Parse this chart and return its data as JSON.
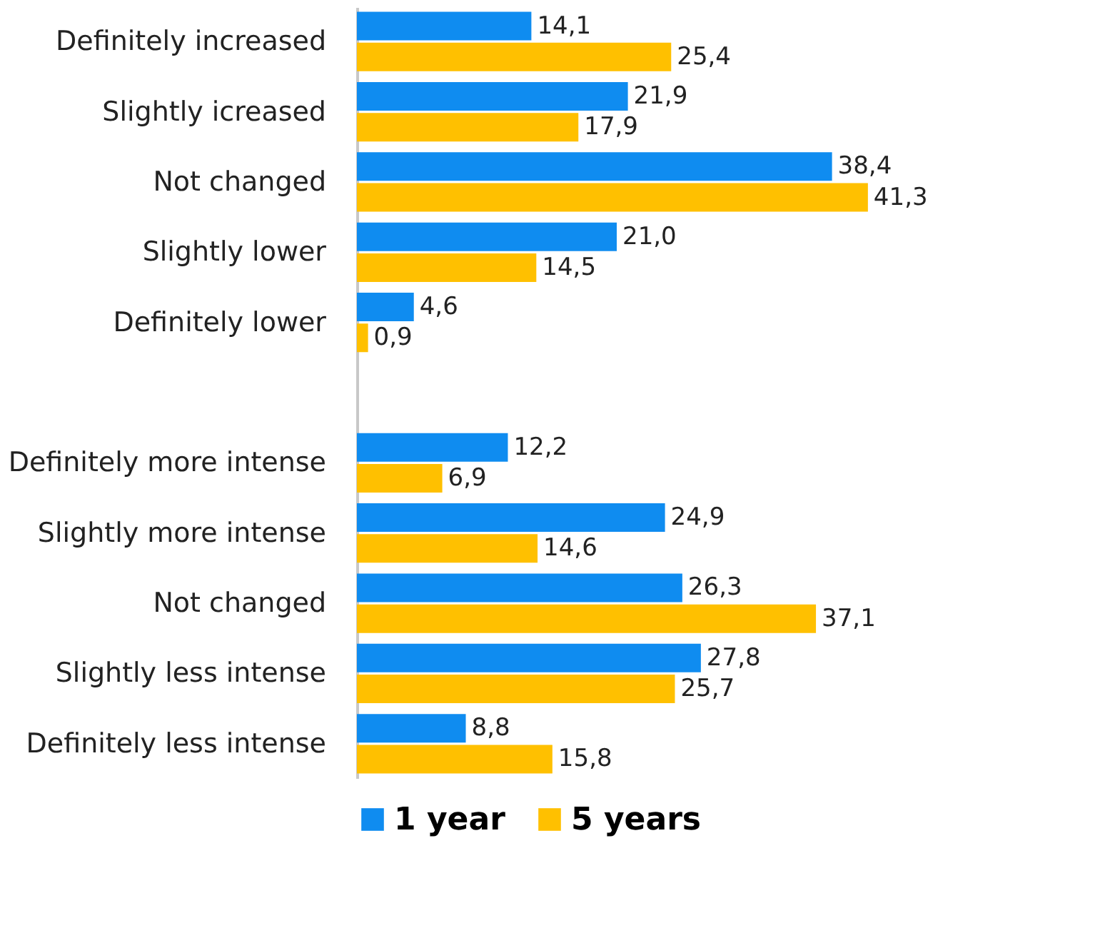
{
  "chart_data": {
    "type": "bar",
    "orientation": "horizontal",
    "categories": [
      "Definitely increased",
      "Slightly icreased",
      "Not changed",
      "Slightly lower",
      "Definitely lower",
      null,
      "Definitely more intense",
      "Slightly more intense",
      "Not changed",
      "Slightly less intense",
      "Definitely less intense"
    ],
    "series": [
      {
        "name": "1 year",
        "color": "#0f8cf0",
        "values": [
          14.1,
          21.9,
          38.4,
          21.0,
          4.6,
          null,
          12.2,
          24.9,
          26.3,
          27.8,
          8.8
        ],
        "value_labels": [
          "14,1",
          "21,9",
          "38,4",
          "21,0",
          "4,6",
          null,
          "12,2",
          "24,9",
          "26,3",
          "27,8",
          "8,8"
        ]
      },
      {
        "name": "5 years",
        "color": "#ffc000",
        "values": [
          25.4,
          17.9,
          41.3,
          14.5,
          0.9,
          null,
          6.9,
          14.6,
          37.1,
          25.7,
          15.8
        ],
        "value_labels": [
          "25,4",
          "17,9",
          "41,3",
          "14,5",
          "0,9",
          null,
          "6,9",
          "14,6",
          "37,1",
          "25,7",
          "15,8"
        ]
      }
    ],
    "legend": "bottom",
    "grid": false
  }
}
